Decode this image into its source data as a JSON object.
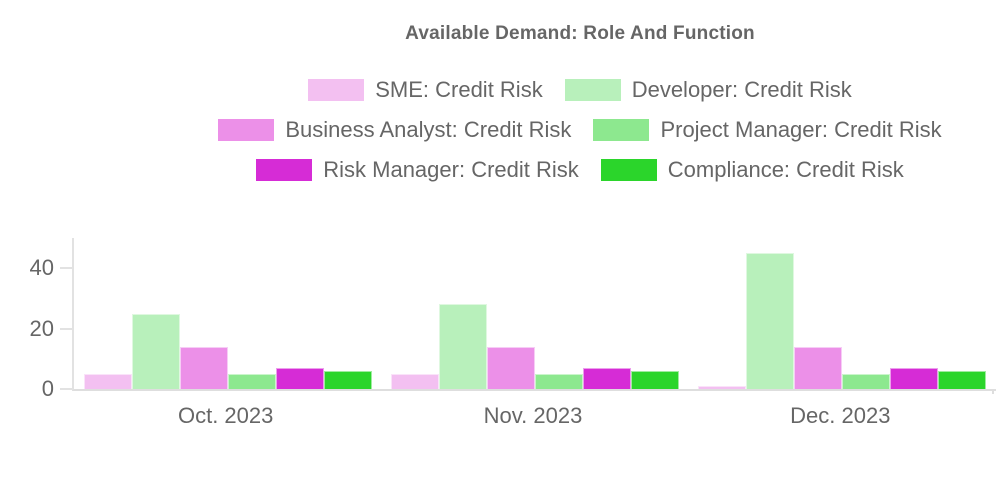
{
  "chart_data": {
    "type": "bar",
    "title": "Available Demand: Role And Function",
    "categories": [
      "Oct. 2023",
      "Nov. 2023",
      "Dec. 2023"
    ],
    "series": [
      {
        "name": "SME: Credit Risk",
        "color": "#f3c0f1",
        "values": [
          5,
          5,
          1
        ]
      },
      {
        "name": "Developer: Credit Risk",
        "color": "#b8f0bb",
        "values": [
          25,
          28,
          45
        ]
      },
      {
        "name": "Business Analyst: Credit Risk",
        "color": "#ec90e8",
        "values": [
          14,
          14,
          14
        ]
      },
      {
        "name": "Project Manager: Credit Risk",
        "color": "#8de88f",
        "values": [
          5,
          5,
          5
        ]
      },
      {
        "name": "Risk Manager: Credit Risk",
        "color": "#d62cd6",
        "values": [
          7,
          7,
          7
        ]
      },
      {
        "name": "Compliance: Credit Risk",
        "color": "#2bd52b",
        "values": [
          6,
          6,
          6
        ]
      }
    ],
    "legend_rows": [
      [
        0,
        1
      ],
      [
        2,
        3
      ],
      [
        4,
        5
      ]
    ],
    "legend_position": "top",
    "yticks": [
      0,
      20,
      40
    ],
    "ylim": [
      0,
      50
    ],
    "xlabel": "",
    "ylabel": "",
    "grid": false
  },
  "colors": {
    "text": "#666666",
    "axis_line": "#e2e2e2",
    "background": "#ffffff"
  }
}
